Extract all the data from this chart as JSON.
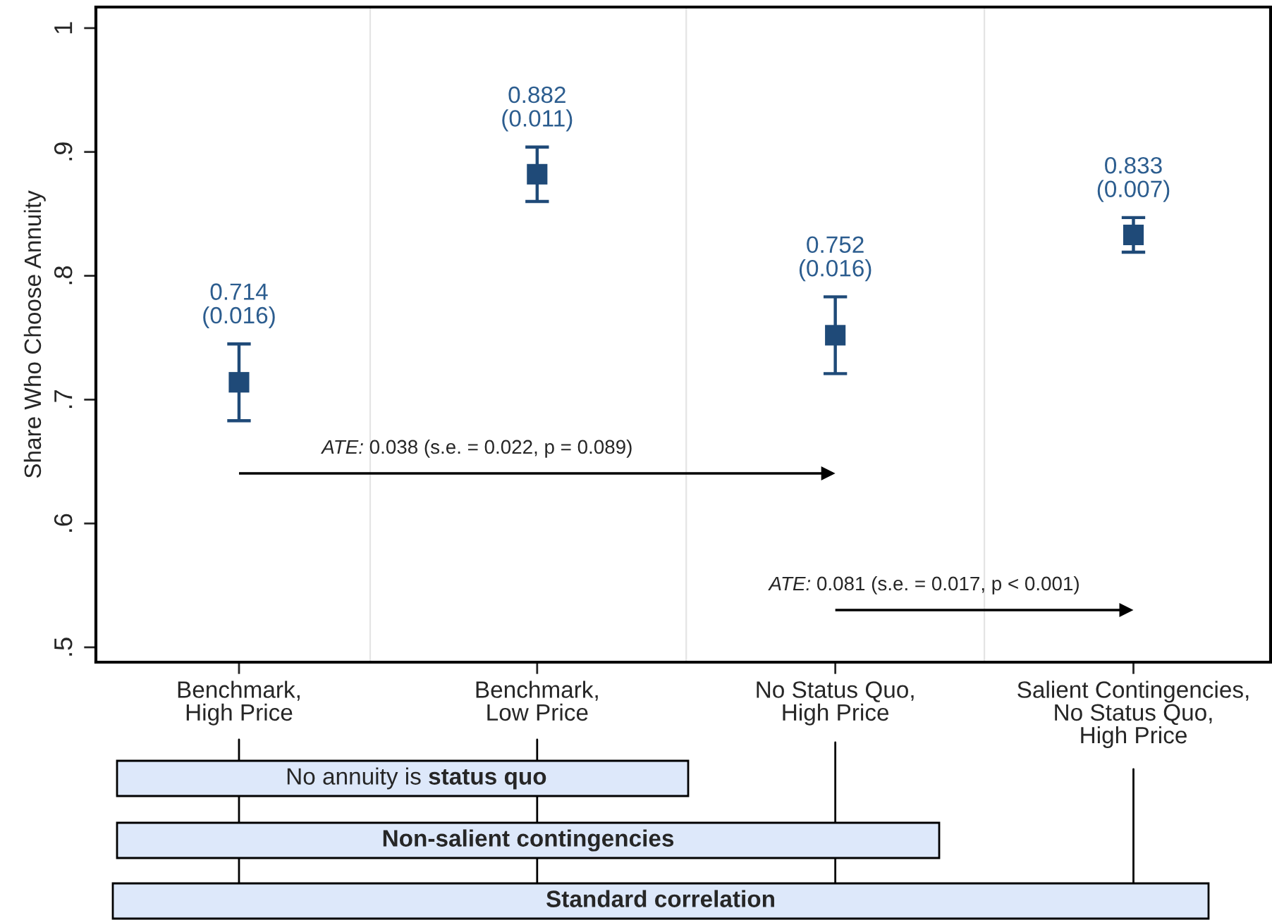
{
  "chart_data": {
    "type": "scatter",
    "ylabel": "Share Who Choose Annuity",
    "categories": [
      "Benchmark,\nHigh Price",
      "Benchmark,\nLow Price",
      "No Status Quo,\nHigh Price",
      "Salient Contingencies,\nNo Status Quo,\nHigh Price"
    ],
    "series": [
      {
        "color": "#1f4a78",
        "values": [
          0.714,
          0.882,
          0.752,
          0.833
        ],
        "errors": [
          0.031,
          0.022,
          0.031,
          0.014
        ],
        "value_labels": [
          "0.714\n(0.016)",
          "0.882\n(0.011)",
          "0.752\n(0.016)",
          "0.833\n(0.007)"
        ]
      }
    ],
    "marker": "square",
    "ylim": [
      0.488,
      1.017
    ],
    "yticks": [
      {
        "value": 0.5,
        "label": ".5"
      },
      {
        "value": 0.6,
        "label": ".6"
      },
      {
        "value": 0.7,
        "label": ".7"
      },
      {
        "value": 0.8,
        "label": ".8"
      },
      {
        "value": 0.9,
        "label": ".9"
      },
      1
    ],
    "annotations": [
      "ATE: 0.038 (s.e. = 0.022, p = 0.089)",
      "ATE: 0.081 (s.e. = 0.017, p < 0.001)",
      "No annuity is status quo",
      "Non-salient contingencies",
      "Standard correlation"
    ],
    "legend": false
  }
}
